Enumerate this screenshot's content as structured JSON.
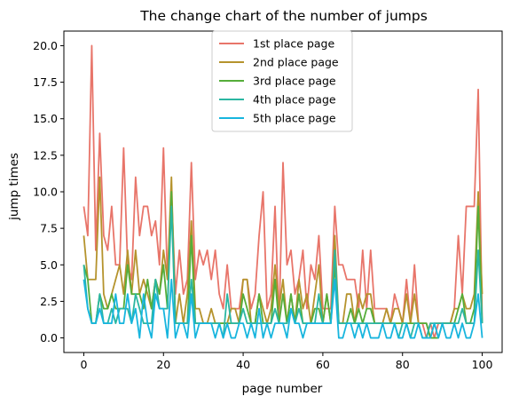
{
  "chart_data": {
    "type": "line",
    "title": "The change chart of the number of jumps",
    "xlabel": "page number",
    "ylabel": "jump times",
    "xlim": [
      -5,
      105
    ],
    "ylim": [
      -1,
      21
    ],
    "xticks": [
      0,
      20,
      40,
      60,
      80,
      100
    ],
    "yticks": [
      0.0,
      2.5,
      5.0,
      7.5,
      10.0,
      12.5,
      15.0,
      17.5,
      20.0
    ],
    "xtick_labels": [
      "0",
      "20",
      "40",
      "60",
      "80",
      "100"
    ],
    "ytick_labels": [
      "0.0",
      "2.5",
      "5.0",
      "7.5",
      "10.0",
      "12.5",
      "15.0",
      "17.5",
      "20.0"
    ],
    "grid": false,
    "legend_position": "top-center",
    "x": [
      0,
      1,
      2,
      3,
      4,
      5,
      6,
      7,
      8,
      9,
      10,
      11,
      12,
      13,
      14,
      15,
      16,
      17,
      18,
      19,
      20,
      21,
      22,
      23,
      24,
      25,
      26,
      27,
      28,
      29,
      30,
      31,
      32,
      33,
      34,
      35,
      36,
      37,
      38,
      39,
      40,
      41,
      42,
      43,
      44,
      45,
      46,
      47,
      48,
      49,
      50,
      51,
      52,
      53,
      54,
      55,
      56,
      57,
      58,
      59,
      60,
      61,
      62,
      63,
      64,
      65,
      66,
      67,
      68,
      69,
      70,
      71,
      72,
      73,
      74,
      75,
      76,
      77,
      78,
      79,
      80,
      81,
      82,
      83,
      84,
      85,
      86,
      87,
      88,
      89,
      90,
      91,
      92,
      93,
      94,
      95,
      96,
      97,
      98,
      99,
      100
    ],
    "series": [
      {
        "name": "1st place page",
        "color": "#e8756a",
        "values": [
          9,
          7,
          20,
          6,
          14,
          7,
          6,
          9,
          5,
          5,
          13,
          5,
          4,
          11,
          7,
          9,
          9,
          7,
          8,
          5,
          13,
          4,
          10,
          3,
          6,
          3,
          4,
          12,
          4,
          6,
          5,
          6,
          4,
          6,
          3,
          2,
          5,
          2,
          2,
          2,
          4,
          4,
          2,
          3,
          7,
          10,
          2,
          3,
          9,
          1,
          12,
          5,
          6,
          3,
          4,
          6,
          2,
          5,
          4,
          7,
          2,
          2,
          2,
          9,
          5,
          5,
          4,
          4,
          4,
          2,
          6,
          2,
          6,
          2,
          2,
          2,
          2,
          1,
          3,
          2,
          1,
          4,
          1,
          5,
          1,
          1,
          0,
          1,
          0,
          1,
          1,
          1,
          1,
          2,
          7,
          3,
          9,
          9,
          9,
          17,
          1
        ]
      },
      {
        "name": "2nd place page",
        "color": "#b5932d",
        "values": [
          7,
          4,
          4,
          4,
          11,
          3,
          2,
          3,
          4,
          5,
          3,
          6,
          3,
          6,
          3,
          4,
          3,
          2,
          4,
          3,
          6,
          4,
          11,
          1,
          3,
          1,
          3,
          8,
          2,
          2,
          1,
          1,
          2,
          1,
          1,
          1,
          1,
          2,
          2,
          1,
          4,
          4,
          1,
          1,
          3,
          2,
          1,
          2,
          5,
          2,
          4,
          1,
          3,
          1,
          4,
          2,
          3,
          1,
          3,
          5,
          1,
          3,
          1,
          7,
          1,
          1,
          3,
          3,
          1,
          3,
          2,
          3,
          3,
          1,
          1,
          1,
          2,
          1,
          2,
          2,
          1,
          3,
          1,
          3,
          1,
          1,
          1,
          0,
          1,
          1,
          1,
          1,
          1,
          2,
          2,
          3,
          2,
          2,
          3,
          10,
          3
        ]
      },
      {
        "name": "3rd place page",
        "color": "#55ad3a",
        "values": [
          5,
          4,
          1,
          1,
          3,
          2,
          2,
          3,
          2,
          2,
          2,
          5,
          3,
          3,
          3,
          2,
          4,
          2,
          4,
          3,
          5,
          2,
          10,
          1,
          1,
          1,
          1,
          7,
          1,
          1,
          1,
          1,
          1,
          1,
          1,
          1,
          1,
          1,
          1,
          1,
          3,
          2,
          1,
          1,
          3,
          1,
          1,
          1,
          4,
          1,
          3,
          1,
          3,
          1,
          3,
          1,
          1,
          1,
          2,
          2,
          1,
          3,
          1,
          5,
          1,
          1,
          1,
          2,
          1,
          2,
          1,
          2,
          2,
          1,
          1,
          1,
          1,
          1,
          1,
          1,
          1,
          1,
          1,
          1,
          1,
          1,
          1,
          0,
          0,
          0,
          1,
          1,
          1,
          1,
          2,
          3,
          1,
          1,
          2,
          9,
          1
        ]
      },
      {
        "name": "4th place page",
        "color": "#2bb6a2",
        "values": [
          5,
          2,
          1,
          1,
          3,
          1,
          1,
          2,
          1,
          2,
          2,
          2,
          1,
          3,
          2,
          1,
          1,
          1,
          4,
          2,
          2,
          2,
          9,
          1,
          1,
          1,
          1,
          4,
          1,
          1,
          1,
          1,
          1,
          1,
          1,
          0,
          3,
          1,
          1,
          1,
          2,
          1,
          1,
          1,
          1,
          1,
          1,
          1,
          2,
          1,
          1,
          1,
          2,
          1,
          2,
          1,
          1,
          1,
          1,
          3,
          1,
          1,
          1,
          6,
          1,
          1,
          1,
          1,
          1,
          1,
          1,
          1,
          1,
          1,
          1,
          1,
          1,
          1,
          1,
          0,
          1,
          1,
          0,
          1,
          1,
          0,
          0,
          1,
          1,
          1,
          1,
          1,
          1,
          1,
          1,
          2,
          1,
          1,
          1,
          6,
          1
        ]
      },
      {
        "name": "5th place page",
        "color": "#17b5de",
        "values": [
          4,
          2,
          1,
          1,
          2,
          1,
          1,
          1,
          3,
          1,
          1,
          3,
          1,
          2,
          0,
          3,
          1,
          0,
          3,
          2,
          2,
          0,
          4,
          0,
          1,
          1,
          0,
          3,
          0,
          1,
          1,
          1,
          1,
          0,
          1,
          0,
          1,
          0,
          0,
          1,
          1,
          0,
          1,
          0,
          2,
          0,
          1,
          0,
          1,
          1,
          1,
          0,
          2,
          1,
          1,
          0,
          1,
          1,
          1,
          1,
          1,
          1,
          1,
          4,
          0,
          0,
          1,
          1,
          0,
          1,
          0,
          1,
          0,
          0,
          0,
          1,
          0,
          0,
          1,
          0,
          0,
          1,
          0,
          0,
          1,
          0,
          0,
          0,
          1,
          0,
          1,
          0,
          0,
          1,
          0,
          1,
          0,
          0,
          1,
          3,
          0
        ]
      }
    ]
  }
}
